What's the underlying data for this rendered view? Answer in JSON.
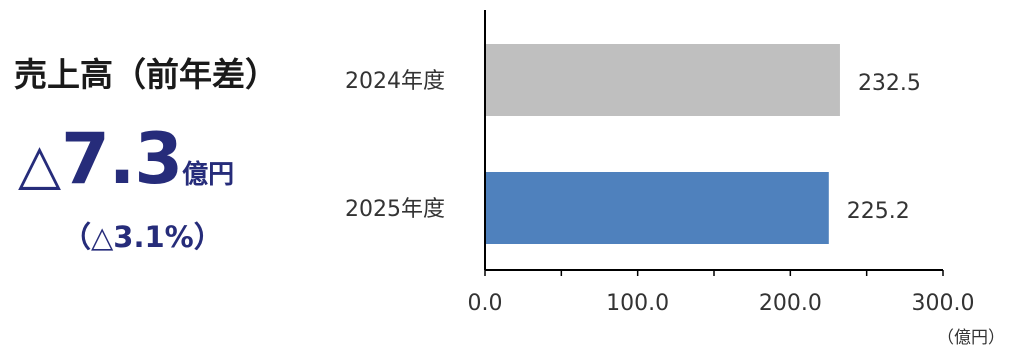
{
  "summary": {
    "title": "売上高（前年差）",
    "change_symbol": "△",
    "change_value": "7.3",
    "change_unit": "億円",
    "change_pct": "（△3.1%）"
  },
  "chart_data": {
    "type": "bar",
    "orientation": "horizontal",
    "categories": [
      "2024年度",
      "2025年度"
    ],
    "values": [
      232.5,
      225.2
    ],
    "value_labels": [
      "232.5",
      "225.2"
    ],
    "colors": [
      "#bfbfbf",
      "#4f81bd"
    ],
    "xlim": [
      0,
      300
    ],
    "x_ticks": [
      0,
      100,
      200,
      300
    ],
    "x_tick_labels": [
      "0.0",
      "100.0",
      "200.0",
      "300.0"
    ],
    "x_unit": "（億円）",
    "grid": false
  }
}
